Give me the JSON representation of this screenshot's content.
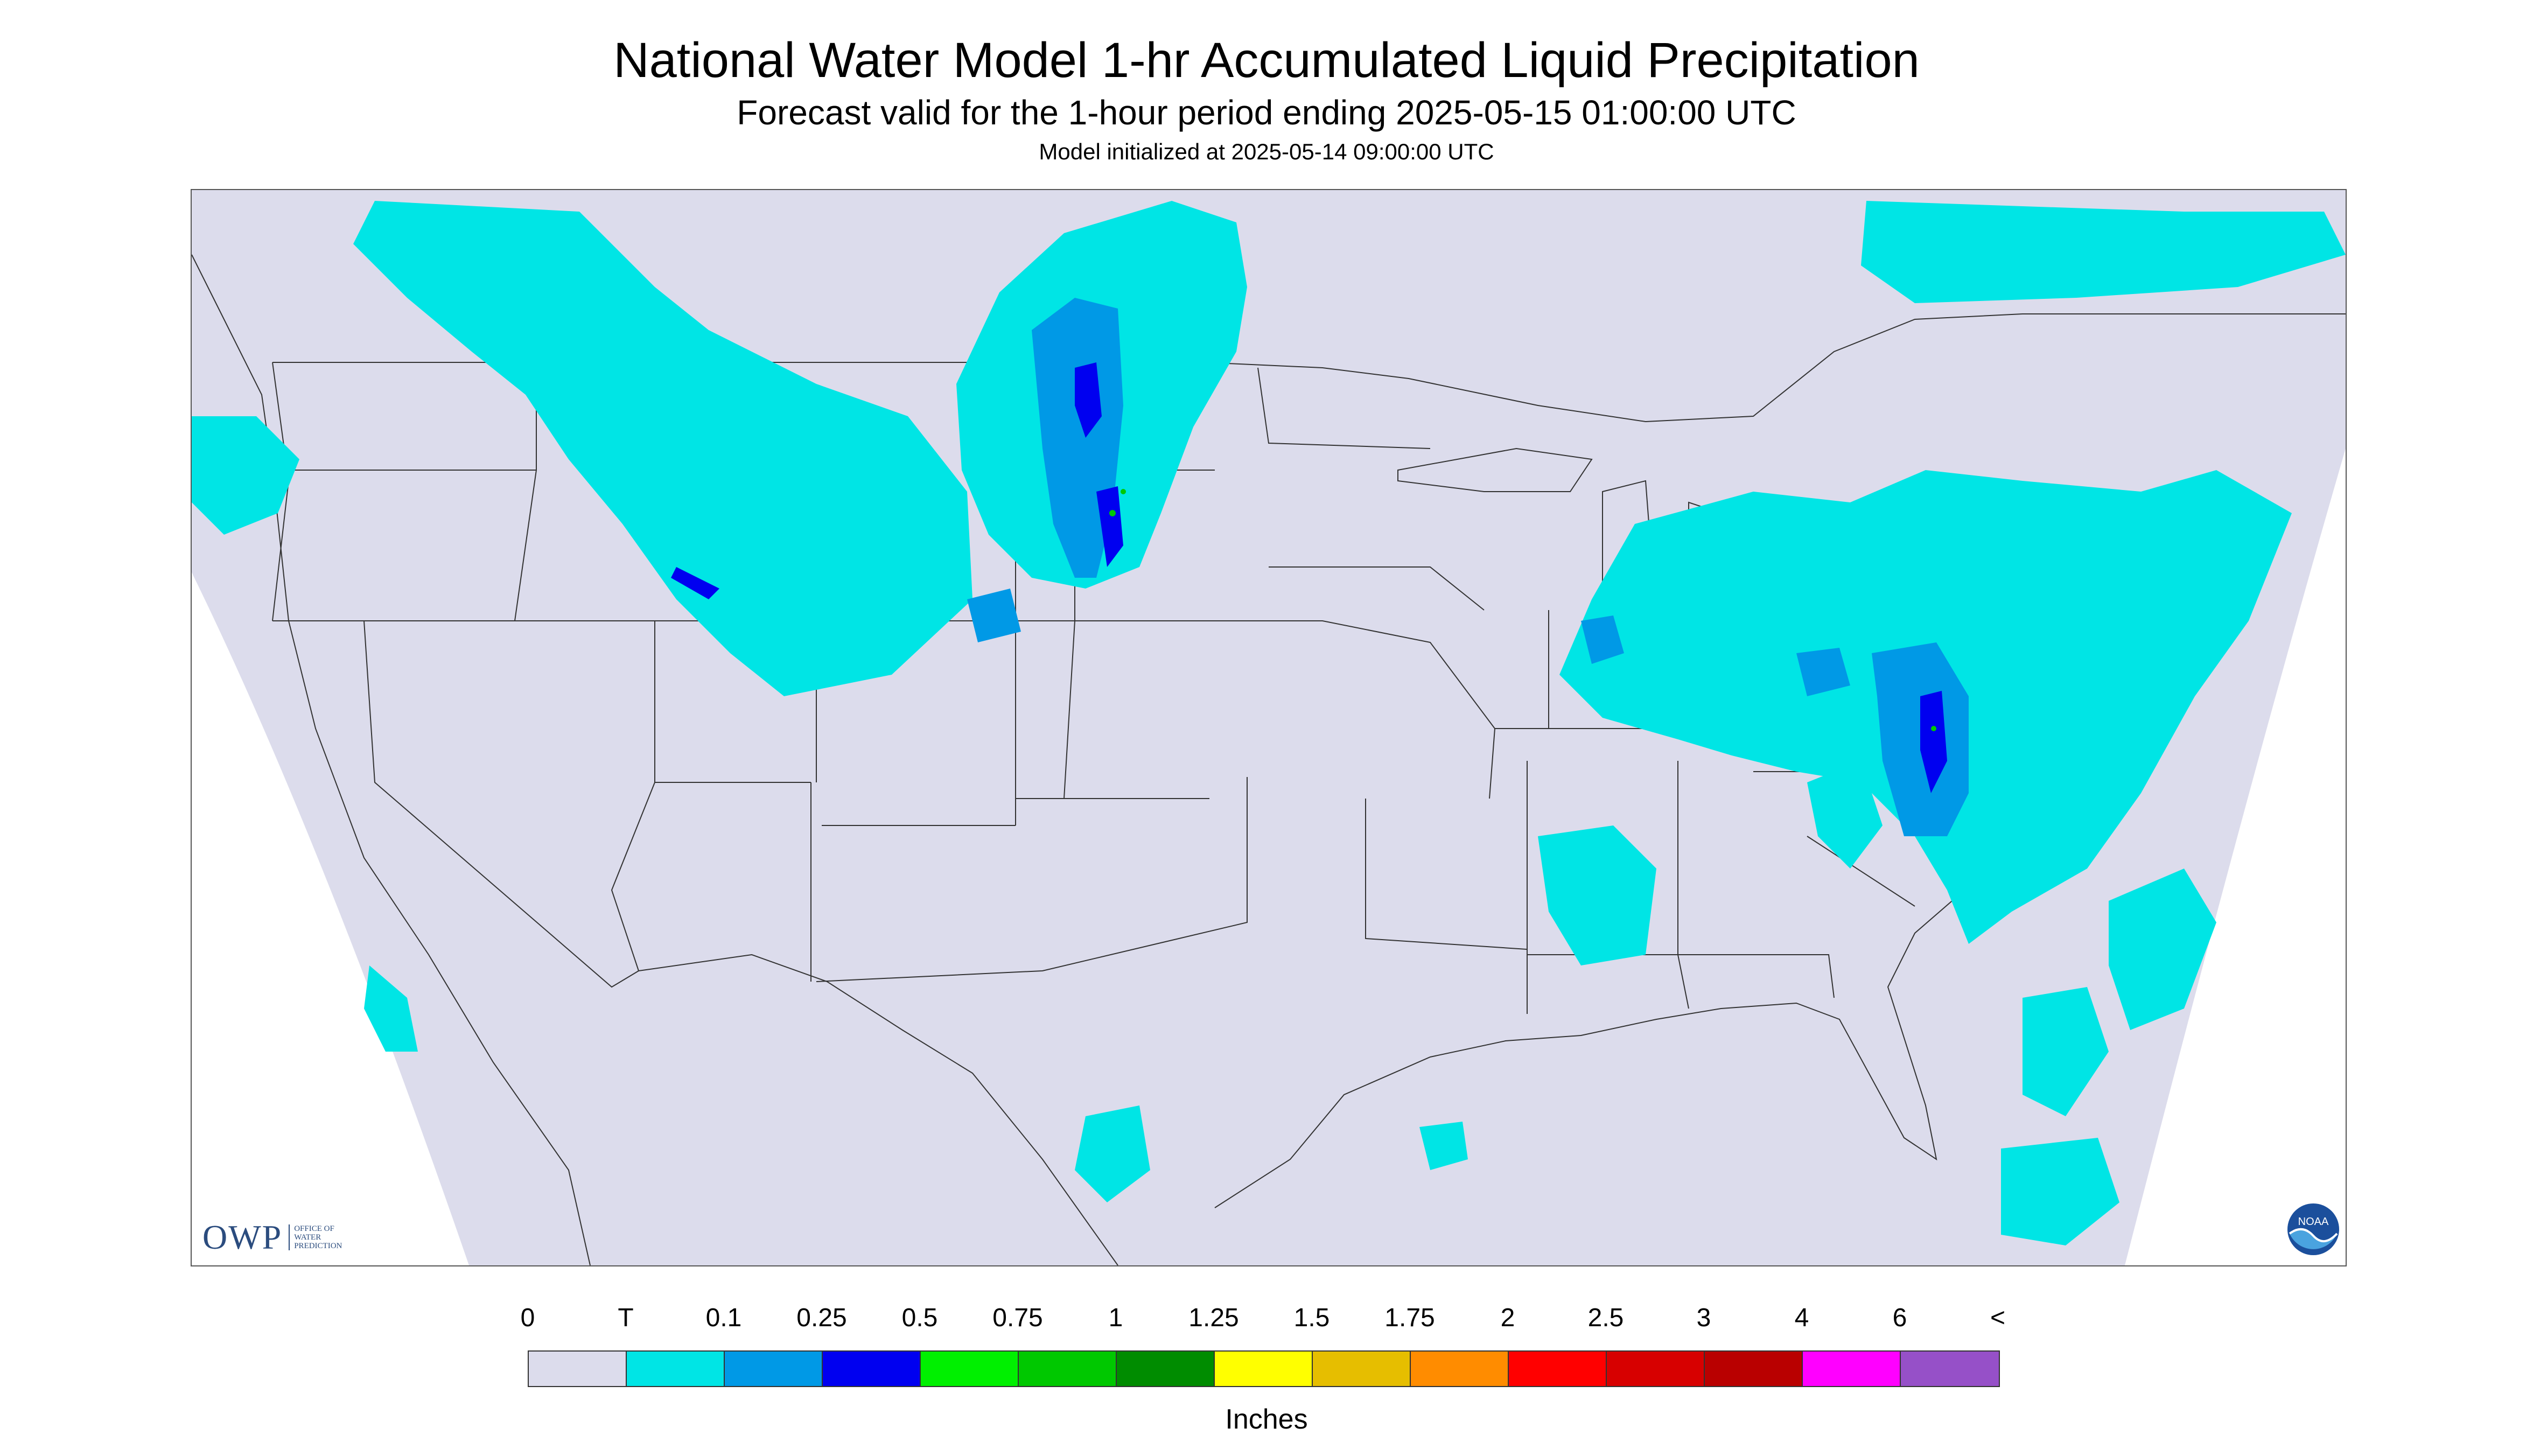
{
  "title": "National Water Model 1-hr Accumulated Liquid Precipitation",
  "subtitle": "Forecast valid for the 1-hour period ending 2025-05-15 01:00:00 UTC",
  "init_line": "Model initialized at 2025-05-14 09:00:00 UTC",
  "logos": {
    "owp_mark": "OWP",
    "owp_text": [
      "OFFICE OF",
      "WATER",
      "PREDICTION"
    ],
    "noaa_text": "NOAA"
  },
  "legend": {
    "labels": [
      "0",
      "T",
      "0.1",
      "0.25",
      "0.5",
      "0.75",
      "1",
      "1.25",
      "1.5",
      "1.75",
      "2",
      "2.5",
      "3",
      "4",
      "6",
      "<"
    ],
    "colors": [
      "#dcdcec",
      "#00e5e5",
      "#0099e6",
      "#0000f0",
      "#00f000",
      "#00c800",
      "#008c00",
      "#ffff00",
      "#e6be00",
      "#ff8c00",
      "#ff0000",
      "#d70000",
      "#b90000",
      "#ff00ff",
      "#9650c8"
    ],
    "units": "Inches"
  },
  "map": {
    "domain_fill": "#dcdcec",
    "outside_fill": "#ffffff",
    "boundary_color": "#333333",
    "precip_colors": {
      "trace": "#00e5e5",
      "light": "#0099e6",
      "moderate": "#0000f0",
      "heavy": "#00c800"
    }
  }
}
